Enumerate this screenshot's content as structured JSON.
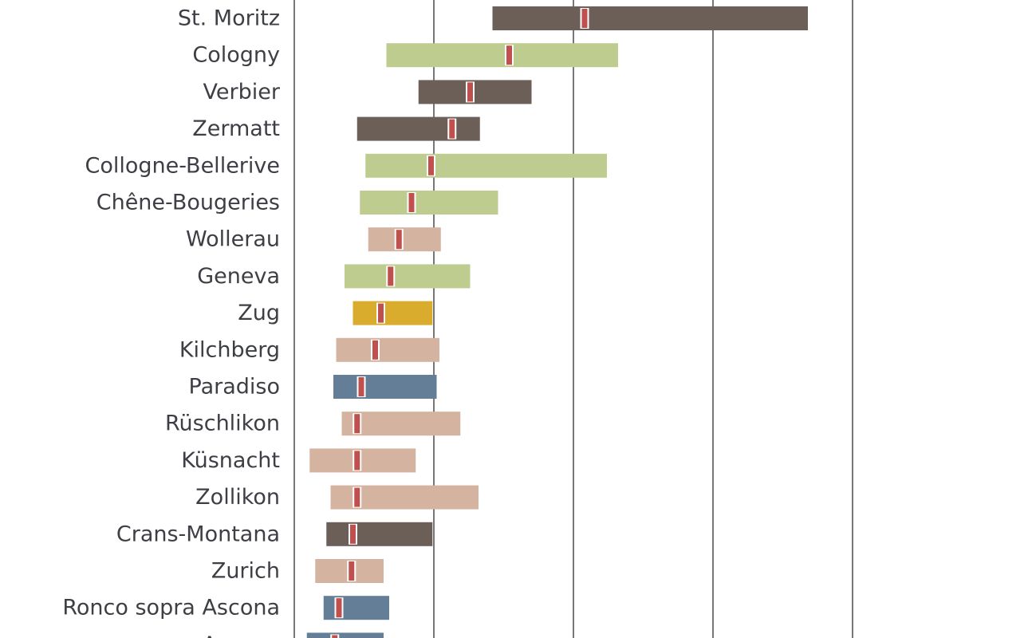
{
  "chart_data": {
    "type": "bar",
    "orientation": "horizontal",
    "subtype": "range",
    "title": "",
    "xlabel": "",
    "ylabel": "",
    "xlim": [
      0,
      4
    ],
    "grid": "vertical gridlines at 1, 2, 3 and 4",
    "legend": "none",
    "colors": {
      "dark": "#6b5f58",
      "green": "#bfcc8f",
      "tan": "#d4b4a0",
      "gold": "#d9ac2d",
      "blue": "#637e96",
      "marker": "#c0504d",
      "gridline": "#4a4a4a",
      "text": "#3d3f45"
    },
    "categories": [
      "St. Moritz",
      "Cologny",
      "Verbier",
      "Zermatt",
      "Collogne-Bellerive",
      "Chêne-Bougeries",
      "Wollerau",
      "Geneva",
      "Zug",
      "Kilchberg",
      "Paradiso",
      "Rüschlikon",
      "Küsnacht",
      "Zollikon",
      "Crans-Montana",
      "Zurich",
      "Ronco sopra Ascona",
      "Ascona"
    ],
    "ranges": [
      {
        "low": 1.42,
        "high": 3.68,
        "marker": 2.08,
        "color": "dark"
      },
      {
        "low": 0.66,
        "high": 2.32,
        "marker": 1.54,
        "color": "green"
      },
      {
        "low": 0.89,
        "high": 1.7,
        "marker": 1.26,
        "color": "dark"
      },
      {
        "low": 0.45,
        "high": 1.33,
        "marker": 1.13,
        "color": "dark"
      },
      {
        "low": 0.51,
        "high": 2.24,
        "marker": 0.98,
        "color": "green"
      },
      {
        "low": 0.47,
        "high": 1.46,
        "marker": 0.84,
        "color": "green"
      },
      {
        "low": 0.53,
        "high": 1.05,
        "marker": 0.75,
        "color": "tan"
      },
      {
        "low": 0.36,
        "high": 1.26,
        "marker": 0.69,
        "color": "green"
      },
      {
        "low": 0.42,
        "high": 0.99,
        "marker": 0.62,
        "color": "gold"
      },
      {
        "low": 0.3,
        "high": 1.04,
        "marker": 0.58,
        "color": "tan"
      },
      {
        "low": 0.28,
        "high": 1.02,
        "marker": 0.48,
        "color": "blue"
      },
      {
        "low": 0.34,
        "high": 1.19,
        "marker": 0.45,
        "color": "tan"
      },
      {
        "low": 0.11,
        "high": 0.87,
        "marker": 0.45,
        "color": "tan"
      },
      {
        "low": 0.26,
        "high": 1.32,
        "marker": 0.45,
        "color": "tan"
      },
      {
        "low": 0.23,
        "high": 0.99,
        "marker": 0.42,
        "color": "dark"
      },
      {
        "low": 0.15,
        "high": 0.64,
        "marker": 0.41,
        "color": "tan"
      },
      {
        "low": 0.21,
        "high": 0.68,
        "marker": 0.32,
        "color": "blue"
      },
      {
        "low": 0.09,
        "high": 0.64,
        "marker": 0.29,
        "color": "blue"
      }
    ]
  }
}
